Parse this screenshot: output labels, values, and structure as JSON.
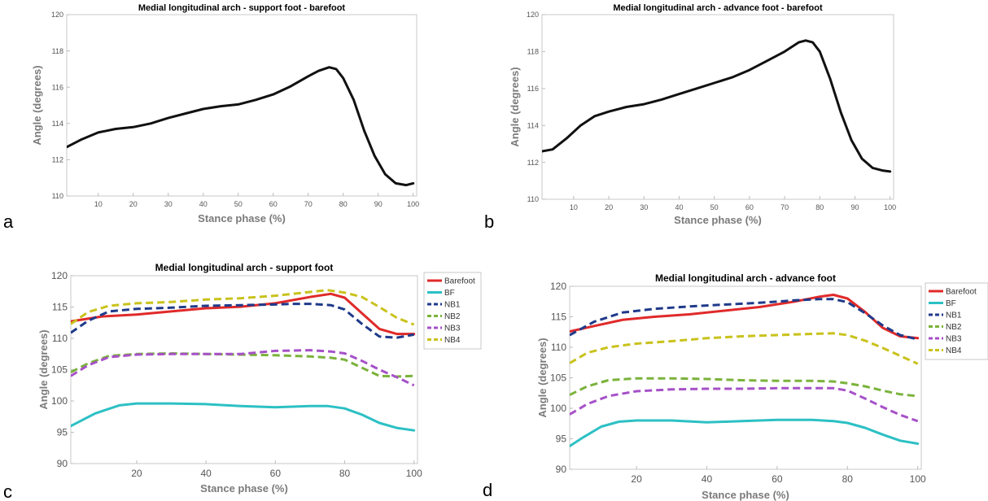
{
  "chart_data": [
    {
      "panel_label": "a",
      "type": "line",
      "title": "Medial longitudinal arch - support foot - barefoot",
      "xlabel": "Stance phase (%)",
      "ylabel": "Angle (degrees)",
      "xlim": [
        1,
        101
      ],
      "ylim": [
        110,
        120
      ],
      "xticks": [
        10,
        20,
        30,
        40,
        50,
        60,
        70,
        80,
        90,
        100
      ],
      "yticks": [
        110,
        112,
        114,
        116,
        118,
        120
      ],
      "grid": false,
      "legend": null,
      "series": [
        {
          "color": "#111111",
          "dashed": false,
          "points": [
            [
              1,
              112.7
            ],
            [
              5,
              113.1
            ],
            [
              10,
              113.5
            ],
            [
              15,
              113.7
            ],
            [
              20,
              113.8
            ],
            [
              25,
              114.0
            ],
            [
              30,
              114.3
            ],
            [
              35,
              114.55
            ],
            [
              40,
              114.8
            ],
            [
              45,
              114.95
            ],
            [
              50,
              115.05
            ],
            [
              55,
              115.3
            ],
            [
              60,
              115.6
            ],
            [
              65,
              116.05
            ],
            [
              70,
              116.6
            ],
            [
              73,
              116.9
            ],
            [
              76,
              117.1
            ],
            [
              78,
              117.0
            ],
            [
              80,
              116.5
            ],
            [
              83,
              115.3
            ],
            [
              86,
              113.6
            ],
            [
              89,
              112.2
            ],
            [
              92,
              111.2
            ],
            [
              95,
              110.7
            ],
            [
              98,
              110.6
            ],
            [
              100,
              110.7
            ]
          ]
        }
      ]
    },
    {
      "panel_label": "b",
      "type": "line",
      "title": "Medial longitudinal arch - advance foot - barefoot",
      "xlabel": "Stance phase (%)",
      "ylabel": "Angle (degrees)",
      "xlim": [
        1,
        101
      ],
      "ylim": [
        110,
        120
      ],
      "xticks": [
        10,
        20,
        30,
        40,
        50,
        60,
        70,
        80,
        90,
        100
      ],
      "yticks": [
        110,
        112,
        114,
        116,
        118,
        120
      ],
      "grid": false,
      "legend": null,
      "series": [
        {
          "color": "#111111",
          "dashed": false,
          "points": [
            [
              1,
              112.6
            ],
            [
              4,
              112.7
            ],
            [
              8,
              113.3
            ],
            [
              12,
              114.0
            ],
            [
              16,
              114.5
            ],
            [
              20,
              114.75
            ],
            [
              25,
              115.0
            ],
            [
              30,
              115.15
            ],
            [
              35,
              115.4
            ],
            [
              40,
              115.7
            ],
            [
              45,
              116.0
            ],
            [
              50,
              116.3
            ],
            [
              55,
              116.6
            ],
            [
              60,
              117.0
            ],
            [
              65,
              117.5
            ],
            [
              70,
              118.0
            ],
            [
              74,
              118.5
            ],
            [
              76,
              118.6
            ],
            [
              78,
              118.5
            ],
            [
              80,
              118.0
            ],
            [
              83,
              116.5
            ],
            [
              86,
              114.7
            ],
            [
              89,
              113.2
            ],
            [
              92,
              112.2
            ],
            [
              95,
              111.7
            ],
            [
              98,
              111.55
            ],
            [
              100,
              111.5
            ]
          ]
        }
      ]
    },
    {
      "panel_label": "c",
      "type": "line",
      "title": "Medial longitudinal arch - support foot",
      "xlabel": "Stance phase (%)",
      "ylabel": "Angle (degrees)",
      "xlim": [
        1,
        101
      ],
      "ylim": [
        90,
        120
      ],
      "xticks": [
        20,
        40,
        60,
        80,
        100
      ],
      "yticks": [
        90,
        95,
        100,
        105,
        110,
        115,
        120
      ],
      "grid": false,
      "legend": "right-outside",
      "series": [
        {
          "name": "Barefoot",
          "color": "#e02a2a",
          "dashed": false,
          "points": [
            [
              1,
              112.7
            ],
            [
              10,
              113.5
            ],
            [
              20,
              113.8
            ],
            [
              30,
              114.3
            ],
            [
              40,
              114.8
            ],
            [
              50,
              115.05
            ],
            [
              60,
              115.6
            ],
            [
              70,
              116.6
            ],
            [
              76,
              117.1
            ],
            [
              80,
              116.5
            ],
            [
              85,
              114.0
            ],
            [
              90,
              111.5
            ],
            [
              95,
              110.7
            ],
            [
              100,
              110.7
            ]
          ]
        },
        {
          "name": "BF",
          "color": "#2cc0c4",
          "dashed": false,
          "points": [
            [
              1,
              96.0
            ],
            [
              8,
              98.0
            ],
            [
              15,
              99.3
            ],
            [
              20,
              99.6
            ],
            [
              30,
              99.6
            ],
            [
              40,
              99.5
            ],
            [
              50,
              99.2
            ],
            [
              60,
              99.0
            ],
            [
              70,
              99.2
            ],
            [
              75,
              99.2
            ],
            [
              80,
              98.8
            ],
            [
              85,
              97.8
            ],
            [
              90,
              96.5
            ],
            [
              95,
              95.7
            ],
            [
              100,
              95.3
            ]
          ]
        },
        {
          "name": "NB1",
          "color": "#1f3a8a",
          "dashed": true,
          "points": [
            [
              1,
              110.9
            ],
            [
              6,
              112.8
            ],
            [
              12,
              114.3
            ],
            [
              20,
              114.7
            ],
            [
              30,
              114.9
            ],
            [
              40,
              115.2
            ],
            [
              50,
              115.3
            ],
            [
              60,
              115.4
            ],
            [
              65,
              115.5
            ],
            [
              70,
              115.5
            ],
            [
              76,
              115.3
            ],
            [
              80,
              114.6
            ],
            [
              85,
              112.3
            ],
            [
              90,
              110.3
            ],
            [
              95,
              110.1
            ],
            [
              100,
              110.6
            ]
          ]
        },
        {
          "name": "NB2",
          "color": "#7ab23b",
          "dashed": true,
          "points": [
            [
              1,
              104.6
            ],
            [
              6,
              106.0
            ],
            [
              12,
              107.2
            ],
            [
              20,
              107.5
            ],
            [
              30,
              107.6
            ],
            [
              40,
              107.5
            ],
            [
              50,
              107.4
            ],
            [
              60,
              107.3
            ],
            [
              70,
              107.1
            ],
            [
              76,
              106.9
            ],
            [
              80,
              106.6
            ],
            [
              85,
              105.3
            ],
            [
              90,
              104.0
            ],
            [
              95,
              103.9
            ],
            [
              100,
              104.0
            ]
          ]
        },
        {
          "name": "NB3",
          "color": "#a651c8",
          "dashed": true,
          "points": [
            [
              1,
              104.0
            ],
            [
              6,
              105.7
            ],
            [
              12,
              107.0
            ],
            [
              20,
              107.4
            ],
            [
              30,
              107.5
            ],
            [
              40,
              107.5
            ],
            [
              50,
              107.5
            ],
            [
              60,
              108.0
            ],
            [
              70,
              108.1
            ],
            [
              76,
              107.9
            ],
            [
              80,
              107.6
            ],
            [
              85,
              106.4
            ],
            [
              90,
              105.0
            ],
            [
              95,
              103.8
            ],
            [
              100,
              102.5
            ]
          ]
        },
        {
          "name": "NB4",
          "color": "#c9c21c",
          "dashed": true,
          "points": [
            [
              1,
              112.3
            ],
            [
              6,
              114.2
            ],
            [
              12,
              115.2
            ],
            [
              20,
              115.6
            ],
            [
              30,
              115.8
            ],
            [
              40,
              116.2
            ],
            [
              50,
              116.4
            ],
            [
              60,
              116.8
            ],
            [
              70,
              117.4
            ],
            [
              75,
              117.7
            ],
            [
              80,
              117.3
            ],
            [
              85,
              116.6
            ],
            [
              90,
              115.0
            ],
            [
              95,
              113.3
            ],
            [
              100,
              112.2
            ]
          ]
        }
      ]
    },
    {
      "panel_label": "d",
      "type": "line",
      "title": "Medial longitudinal arch - advance foot",
      "xlabel": "Stance phase (%)",
      "ylabel": "Angle (degrees)",
      "xlim": [
        1,
        101
      ],
      "ylim": [
        90,
        120
      ],
      "xticks": [
        20,
        40,
        60,
        80,
        100
      ],
      "yticks": [
        90,
        95,
        100,
        105,
        110,
        115,
        120
      ],
      "grid": false,
      "legend": "right-outside",
      "series": [
        {
          "name": "Barefoot",
          "color": "#e02a2a",
          "dashed": false,
          "points": [
            [
              1,
              112.6
            ],
            [
              8,
              113.5
            ],
            [
              16,
              114.5
            ],
            [
              25,
              115.0
            ],
            [
              35,
              115.4
            ],
            [
              45,
              116.0
            ],
            [
              55,
              116.6
            ],
            [
              65,
              117.5
            ],
            [
              72,
              118.3
            ],
            [
              76,
              118.6
            ],
            [
              80,
              118.0
            ],
            [
              85,
              115.8
            ],
            [
              90,
              113.2
            ],
            [
              95,
              111.8
            ],
            [
              100,
              111.5
            ]
          ]
        },
        {
          "name": "BF",
          "color": "#2cc0c4",
          "dashed": false,
          "points": [
            [
              1,
              93.8
            ],
            [
              5,
              95.3
            ],
            [
              10,
              97.0
            ],
            [
              15,
              97.8
            ],
            [
              20,
              98.0
            ],
            [
              30,
              98.0
            ],
            [
              40,
              97.7
            ],
            [
              50,
              97.9
            ],
            [
              60,
              98.1
            ],
            [
              70,
              98.1
            ],
            [
              76,
              97.9
            ],
            [
              80,
              97.6
            ],
            [
              85,
              96.8
            ],
            [
              90,
              95.7
            ],
            [
              95,
              94.7
            ],
            [
              100,
              94.2
            ]
          ]
        },
        {
          "name": "NB1",
          "color": "#1f3a8a",
          "dashed": true,
          "points": [
            [
              1,
              112.0
            ],
            [
              8,
              114.2
            ],
            [
              16,
              115.7
            ],
            [
              25,
              116.3
            ],
            [
              35,
              116.7
            ],
            [
              45,
              117.0
            ],
            [
              55,
              117.3
            ],
            [
              65,
              117.7
            ],
            [
              72,
              117.9
            ],
            [
              76,
              117.9
            ],
            [
              80,
              117.4
            ],
            [
              85,
              115.6
            ],
            [
              90,
              113.6
            ],
            [
              95,
              112.0
            ],
            [
              100,
              111.3
            ]
          ]
        },
        {
          "name": "NB2",
          "color": "#7ab23b",
          "dashed": true,
          "points": [
            [
              1,
              102.2
            ],
            [
              6,
              103.6
            ],
            [
              12,
              104.6
            ],
            [
              20,
              104.9
            ],
            [
              30,
              104.9
            ],
            [
              40,
              104.8
            ],
            [
              50,
              104.6
            ],
            [
              60,
              104.5
            ],
            [
              70,
              104.5
            ],
            [
              76,
              104.4
            ],
            [
              80,
              104.1
            ],
            [
              85,
              103.6
            ],
            [
              90,
              102.9
            ],
            [
              95,
              102.3
            ],
            [
              100,
              102.0
            ]
          ]
        },
        {
          "name": "NB3",
          "color": "#a651c8",
          "dashed": true,
          "points": [
            [
              1,
              99.0
            ],
            [
              6,
              100.7
            ],
            [
              12,
              102.0
            ],
            [
              20,
              102.8
            ],
            [
              30,
              103.1
            ],
            [
              40,
              103.2
            ],
            [
              50,
              103.2
            ],
            [
              60,
              103.3
            ],
            [
              70,
              103.3
            ],
            [
              76,
              103.3
            ],
            [
              80,
              102.9
            ],
            [
              85,
              101.6
            ],
            [
              90,
              100.2
            ],
            [
              95,
              98.9
            ],
            [
              100,
              97.9
            ]
          ]
        },
        {
          "name": "NB4",
          "color": "#c9c21c",
          "dashed": true,
          "points": [
            [
              1,
              107.4
            ],
            [
              6,
              109.1
            ],
            [
              12,
              110.0
            ],
            [
              20,
              110.6
            ],
            [
              30,
              111.0
            ],
            [
              40,
              111.5
            ],
            [
              50,
              111.8
            ],
            [
              60,
              112.0
            ],
            [
              70,
              112.2
            ],
            [
              76,
              112.3
            ],
            [
              80,
              112.0
            ],
            [
              85,
              111.1
            ],
            [
              90,
              109.9
            ],
            [
              95,
              108.6
            ],
            [
              100,
              107.3
            ]
          ]
        }
      ]
    }
  ]
}
